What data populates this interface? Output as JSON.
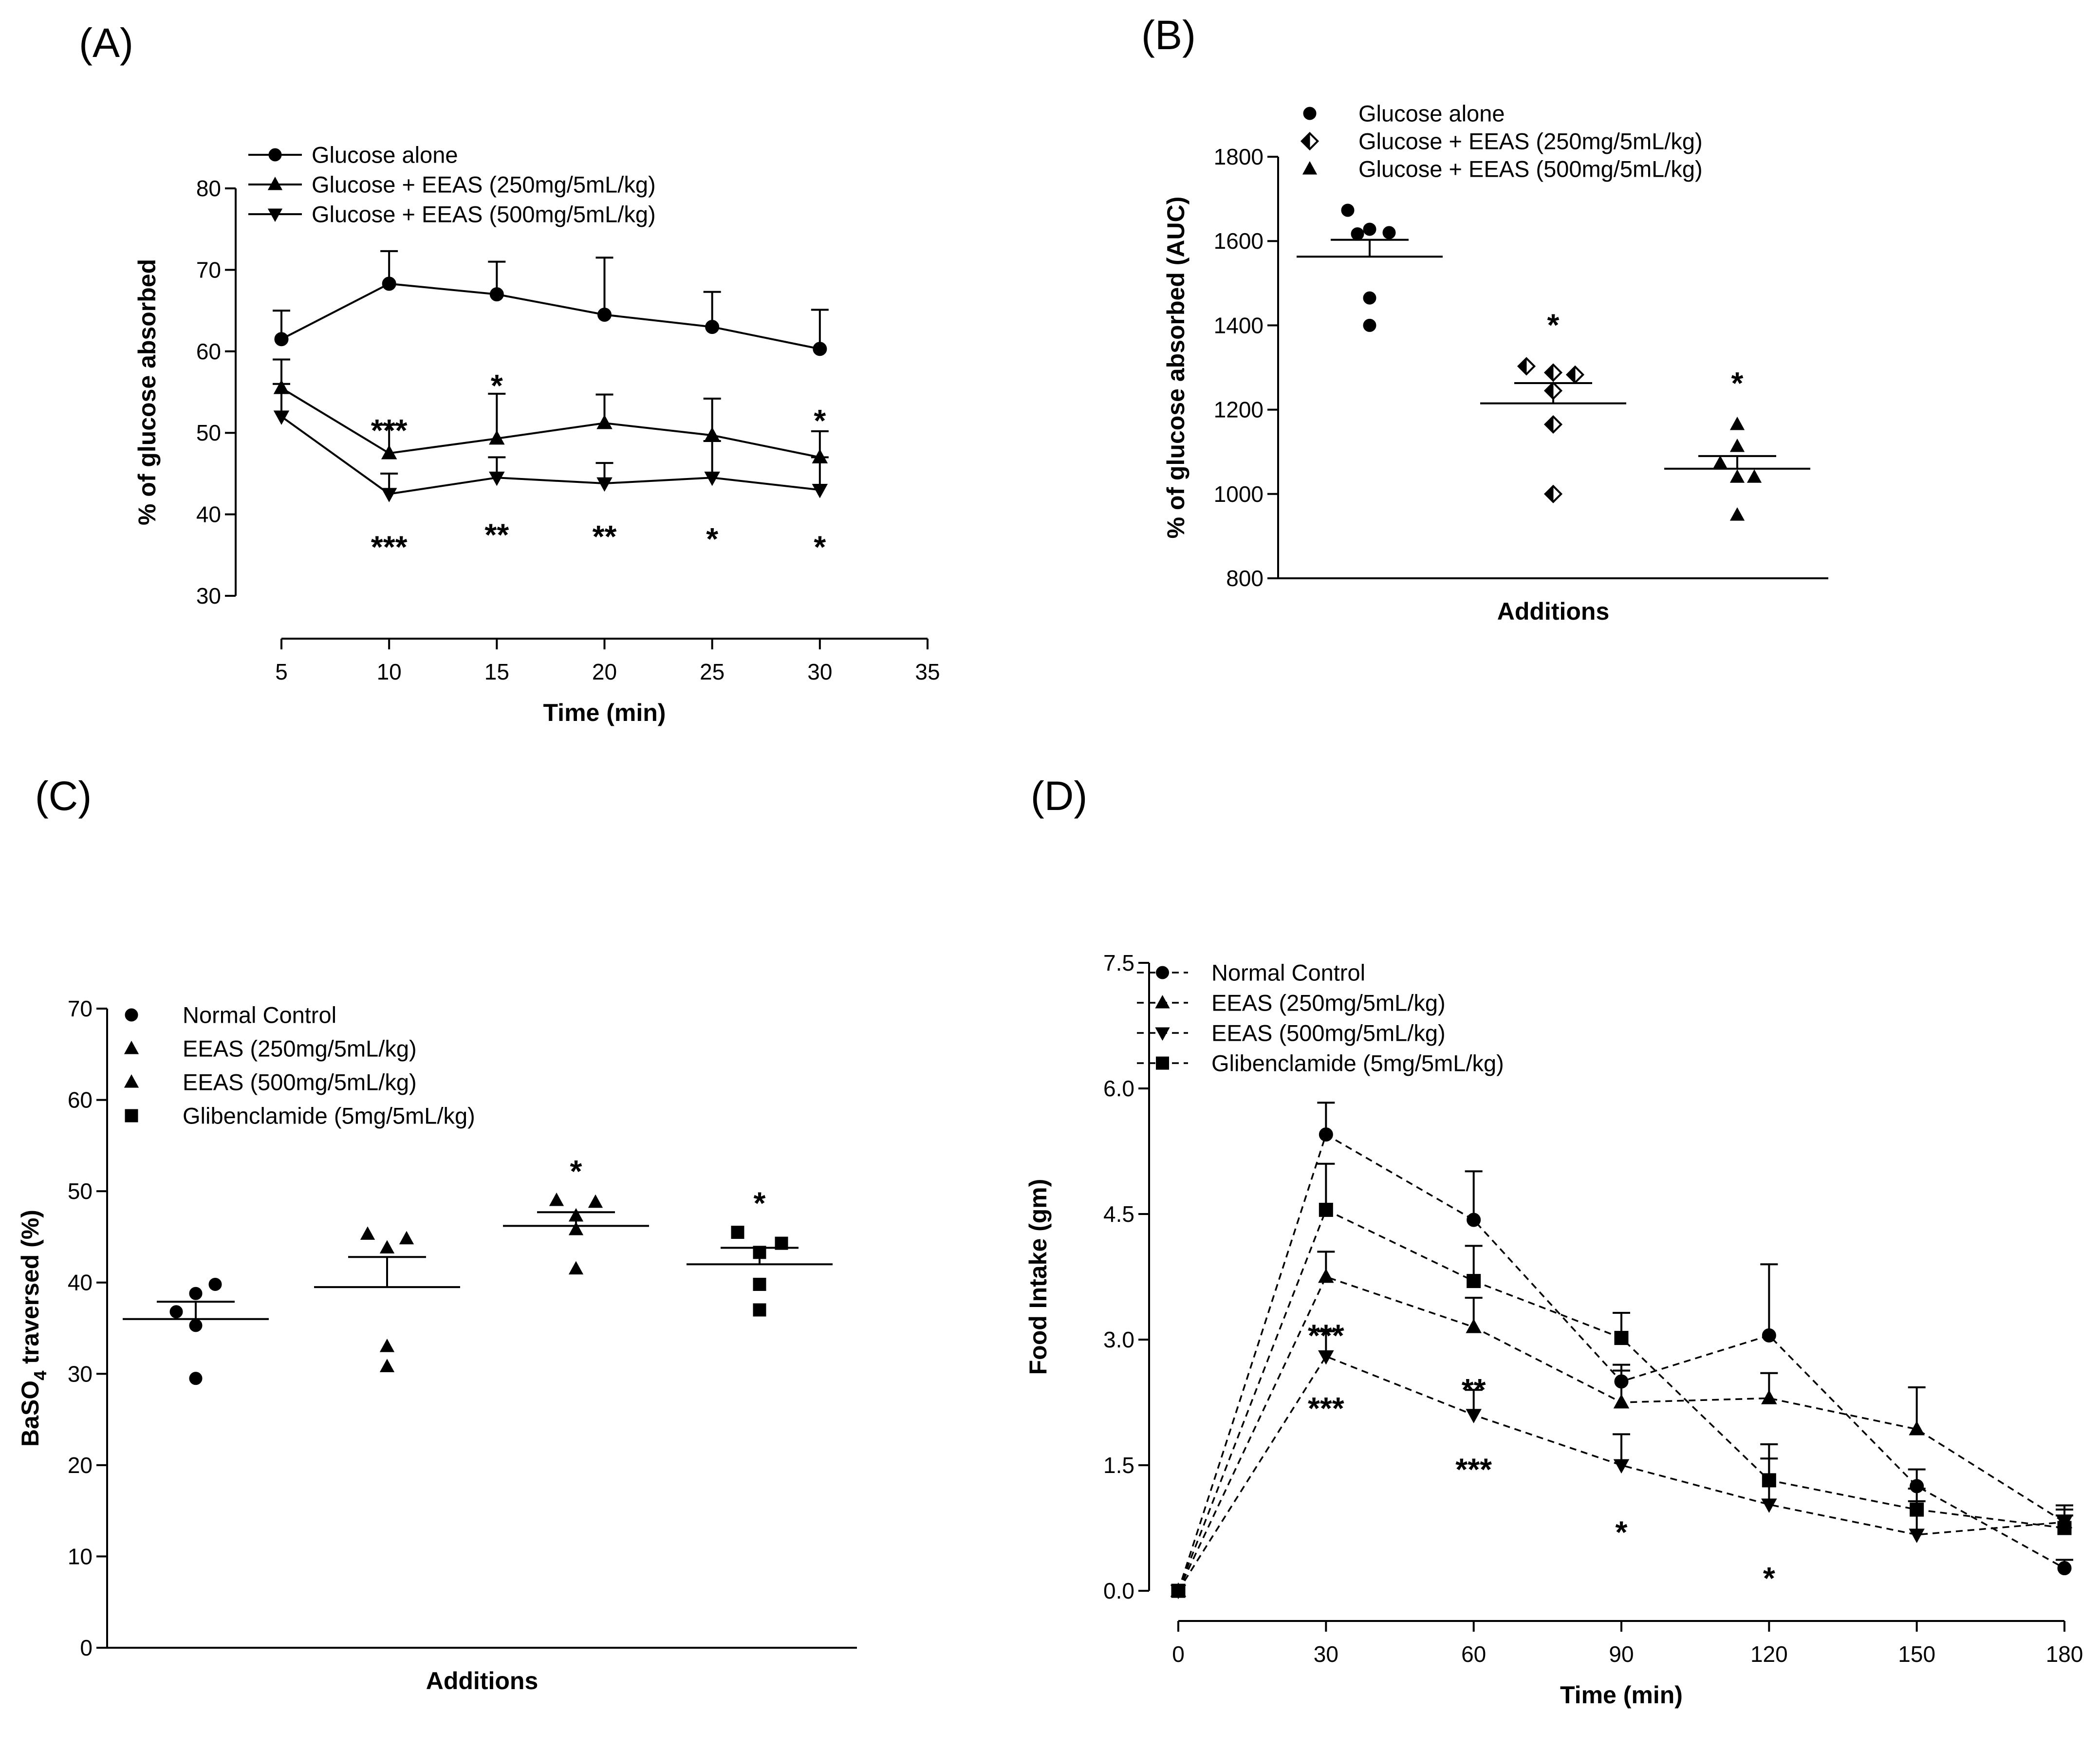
{
  "chart_data": [
    {
      "id": "A",
      "panel_label": "(A)",
      "type": "line",
      "xlabel": "Time (min)",
      "ylabel": "% of glucose absorbed",
      "xlim": [
        5,
        35
      ],
      "ylim": [
        30,
        80
      ],
      "x_ticks": [
        5,
        10,
        15,
        20,
        25,
        30,
        35
      ],
      "y_ticks": [
        30,
        40,
        50,
        60,
        70,
        80
      ],
      "legend_position": "top",
      "series": [
        {
          "name": "Glucose alone",
          "marker": "circle",
          "x": [
            5,
            10,
            15,
            20,
            25,
            30
          ],
          "values": [
            61.5,
            68.3,
            67.0,
            64.5,
            63.0,
            60.3
          ],
          "errors": [
            3.5,
            4.0,
            4.0,
            7.0,
            4.3,
            4.8
          ]
        },
        {
          "name": "Glucose + EEAS (250mg/5mL/kg)",
          "marker": "triangle-up",
          "x": [
            5,
            10,
            15,
            20,
            25,
            30
          ],
          "values": [
            55.5,
            47.5,
            49.3,
            51.2,
            49.7,
            47.0
          ],
          "errors": [
            3.5,
            3.5,
            5.5,
            3.5,
            4.5,
            3.2
          ]
        },
        {
          "name": "Glucose + EEAS (500mg/5mL/kg)",
          "marker": "triangle-down",
          "x": [
            5,
            10,
            15,
            20,
            25,
            30
          ],
          "values": [
            52.0,
            42.5,
            44.5,
            43.8,
            44.5,
            43.0
          ],
          "errors": [
            4.0,
            2.5,
            2.5,
            2.5,
            4.5,
            4.0
          ]
        }
      ],
      "annotations": [
        {
          "x": 10,
          "y": 50.3,
          "text": "***"
        },
        {
          "x": 15,
          "y": 55.8,
          "text": "*"
        },
        {
          "x": 30,
          "y": 51.5,
          "text": "*"
        },
        {
          "x": 10,
          "y": 36.0,
          "text": "***"
        },
        {
          "x": 15,
          "y": 37.5,
          "text": "**"
        },
        {
          "x": 20,
          "y": 37.3,
          "text": "**"
        },
        {
          "x": 25,
          "y": 37.0,
          "text": "*"
        },
        {
          "x": 30,
          "y": 36.0,
          "text": "*"
        }
      ]
    },
    {
      "id": "B",
      "panel_label": "(B)",
      "type": "scatter",
      "xlabel": "Additions",
      "ylabel": "% of glucose absorbed (AUC)",
      "ylim": [
        800,
        1800
      ],
      "y_ticks": [
        800,
        1000,
        1200,
        1400,
        1600,
        1800
      ],
      "legend_position": "top-left",
      "groups": [
        {
          "name": "Glucose alone",
          "marker": "circle",
          "points": [
            1673,
            1628,
            1620,
            1617,
            1465,
            1400
          ],
          "mean": 1563,
          "sem_top": 1603
        },
        {
          "name": "Glucose + EEAS (250mg/5mL/kg)",
          "marker": "diamond-half",
          "points": [
            1303,
            1288,
            1283,
            1245,
            1165,
            1000
          ],
          "mean": 1215,
          "sem_top": 1263,
          "annotation": "*"
        },
        {
          "name": "Glucose + EEAS  (500mg/5mL/kg)",
          "marker": "triangle-up",
          "points": [
            1165,
            1113,
            1073,
            1040,
            1040,
            950
          ],
          "mean": 1060,
          "sem_top": 1090,
          "annotation": "*"
        }
      ]
    },
    {
      "id": "C",
      "panel_label": "(C)",
      "type": "scatter",
      "xlabel": "Additions",
      "ylabel_prefix": "BaSO",
      "ylabel_sub": "4",
      "ylabel_suffix": " traversed (%)",
      "ylim": [
        0,
        70
      ],
      "y_ticks": [
        0,
        10,
        20,
        30,
        40,
        50,
        60,
        70
      ],
      "legend_position": "top-left",
      "groups": [
        {
          "name": "Normal Control",
          "marker": "circle",
          "points": [
            39.8,
            38.8,
            36.8,
            35.3,
            29.5
          ],
          "mean": 36.0,
          "sem_top": 37.9
        },
        {
          "name": "EEAS (250mg/5mL/kg)",
          "marker": "triangle-up",
          "points": [
            45.3,
            44.8,
            43.8,
            33.0,
            30.8
          ],
          "mean": 39.5,
          "sem_top": 42.8
        },
        {
          "name": "EEAS (500mg/5mL/kg)",
          "marker": "triangle-up",
          "points": [
            49.0,
            48.8,
            47.3,
            45.8,
            41.5
          ],
          "mean": 46.2,
          "sem_top": 47.7,
          "annotation": "*"
        },
        {
          "name": "Glibenclamide (5mg/5mL/kg)",
          "marker": "square",
          "points": [
            45.5,
            44.3,
            43.3,
            39.8,
            37.0
          ],
          "mean": 42.0,
          "sem_top": 43.8,
          "annotation": "*"
        }
      ]
    },
    {
      "id": "D",
      "panel_label": "(D)",
      "type": "line",
      "xlabel": "Time (min)",
      "ylabel": "Food Intake (gm)",
      "xlim": [
        0,
        180
      ],
      "ylim": [
        0,
        7.5
      ],
      "x_ticks": [
        0,
        30,
        60,
        90,
        120,
        150,
        180
      ],
      "y_ticks": [
        "0.0",
        "1.5",
        "3.0",
        "4.5",
        "6.0",
        "7.5"
      ],
      "legend_position": "top-left",
      "series": [
        {
          "name": "Normal Control",
          "marker": "circle",
          "x": [
            0,
            30,
            60,
            90,
            120,
            150,
            180
          ],
          "values": [
            0,
            5.45,
            4.43,
            2.5,
            3.05,
            1.25,
            0.27
          ],
          "errors": [
            0,
            0.38,
            0.58,
            0.2,
            0.85,
            0.2,
            0.1
          ]
        },
        {
          "name": "EEAS (250mg/5mL/kg)",
          "marker": "triangle-up",
          "x": [
            0,
            30,
            60,
            90,
            120,
            150,
            180
          ],
          "values": [
            0,
            3.75,
            3.15,
            2.25,
            2.3,
            1.93,
            0.82
          ],
          "errors": [
            0,
            0.3,
            0.35,
            0.38,
            0.3,
            0.5,
            0.2
          ]
        },
        {
          "name": "EEAS (500mg/5mL/kg)",
          "marker": "triangle-down",
          "x": [
            0,
            30,
            60,
            90,
            120,
            150,
            180
          ],
          "values": [
            0,
            2.8,
            2.1,
            1.5,
            1.03,
            0.67,
            0.82
          ],
          "errors": [
            0,
            0.3,
            0.3,
            0.37,
            0.55,
            0.4,
            0.15
          ]
        },
        {
          "name": "Glibenclamide (5mg/5mL/kg)",
          "marker": "square",
          "x": [
            0,
            30,
            60,
            90,
            120,
            150,
            180
          ],
          "values": [
            0,
            4.55,
            3.7,
            3.02,
            1.32,
            0.97,
            0.75
          ],
          "errors": [
            0,
            0.55,
            0.42,
            0.3,
            0.43,
            0.25,
            0.15
          ]
        }
      ],
      "annotations": [
        {
          "x": 30,
          "y": 3.05,
          "text": "***"
        },
        {
          "x": 30,
          "y": 2.18,
          "text": "***"
        },
        {
          "x": 60,
          "y": 2.4,
          "text": "**"
        },
        {
          "x": 60,
          "y": 1.45,
          "text": "***"
        },
        {
          "x": 90,
          "y": 0.7,
          "text": "*"
        },
        {
          "x": 120,
          "y": 0.15,
          "text": "*"
        }
      ]
    }
  ]
}
